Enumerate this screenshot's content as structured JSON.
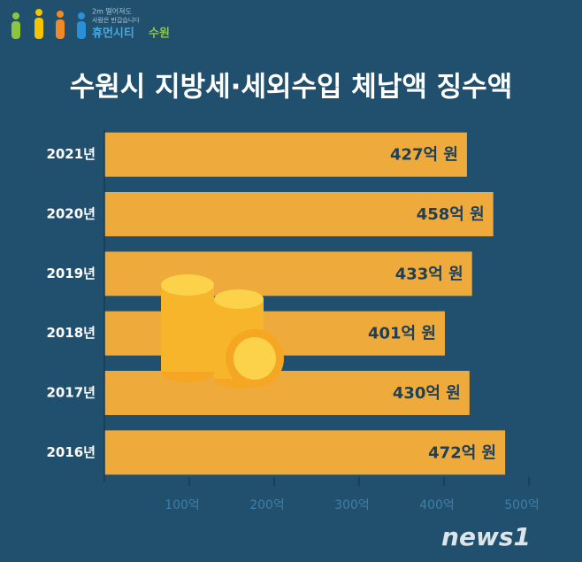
{
  "chart_data": {
    "type": "bar",
    "orientation": "horizontal",
    "title": "수원시 지방세·세외수입 체납액 징수액",
    "categories": [
      "2021년",
      "2020년",
      "2019년",
      "2018년",
      "2017년",
      "2016년"
    ],
    "values": [
      427,
      458,
      433,
      401,
      430,
      472
    ],
    "value_labels": [
      "427억 원",
      "458억 원",
      "433억 원",
      "401억 원",
      "430억 원",
      "472억 원"
    ],
    "color": "#eeab3c",
    "xlim": [
      0,
      500
    ],
    "xticks": [
      {
        "value": 100,
        "label": "100억"
      },
      {
        "value": 200,
        "label": "200억"
      },
      {
        "value": 300,
        "label": "300억"
      },
      {
        "value": 400,
        "label": "400억"
      },
      {
        "value": 500,
        "label": "500억"
      }
    ],
    "grid": false
  },
  "logo": {
    "line1": "2m 떨어져도",
    "line2": "사람은 반갑습니다",
    "name": "휴먼시티",
    "city": "수원"
  },
  "watermark": "news1"
}
